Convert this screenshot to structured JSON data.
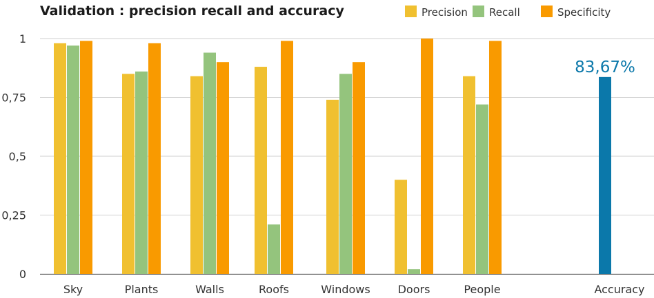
{
  "chart_data": {
    "type": "bar",
    "title": "Validation : precision recall and accuracy",
    "xlabel": "",
    "ylabel": "",
    "ylim": [
      0,
      1
    ],
    "yticks": [
      "0",
      "0,25",
      "0,5",
      "0,75",
      "1"
    ],
    "ytick_values": [
      0,
      0.25,
      0.5,
      0.75,
      1
    ],
    "grid": true,
    "legend_position": "top-right",
    "categories": [
      "Sky",
      "Plants",
      "Walls",
      "Roofs",
      "Windows",
      "Doors",
      "People"
    ],
    "series": [
      {
        "name": "Precision",
        "color": "#f0c030",
        "values": [
          0.98,
          0.85,
          0.84,
          0.88,
          0.74,
          0.4,
          0.84
        ]
      },
      {
        "name": "Recall",
        "color": "#94c47d",
        "values": [
          0.97,
          0.86,
          0.94,
          0.21,
          0.85,
          0.02,
          0.72
        ]
      },
      {
        "name": "Specificity",
        "color": "#f99a00",
        "values": [
          0.99,
          0.98,
          0.9,
          0.99,
          0.9,
          1.0,
          0.99
        ]
      }
    ],
    "accuracy": {
      "category": "Accuracy",
      "value": 0.8367,
      "label": "83,67%",
      "color": "#0b78aa"
    }
  }
}
